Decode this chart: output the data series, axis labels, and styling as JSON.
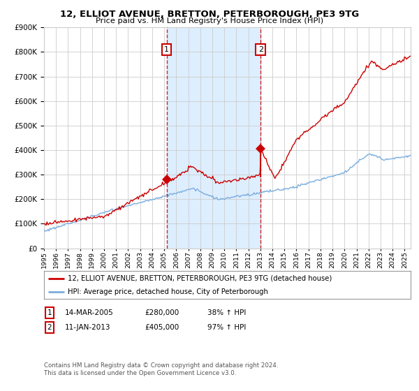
{
  "title": "12, ELLIOT AVENUE, BRETTON, PETERBOROUGH, PE3 9TG",
  "subtitle": "Price paid vs. HM Land Registry's House Price Index (HPI)",
  "legend_line1": "12, ELLIOT AVENUE, BRETTON, PETERBOROUGH, PE3 9TG (detached house)",
  "legend_line2": "HPI: Average price, detached house, City of Peterborough",
  "annotation1_label": "1",
  "annotation1_date": "14-MAR-2005",
  "annotation1_price": "£280,000",
  "annotation1_hpi": "38% ↑ HPI",
  "annotation2_label": "2",
  "annotation2_date": "11-JAN-2013",
  "annotation2_price": "£405,000",
  "annotation2_hpi": "97% ↑ HPI",
  "footnote_line1": "Contains HM Land Registry data © Crown copyright and database right 2024.",
  "footnote_line2": "This data is licensed under the Open Government Licence v3.0.",
  "red_color": "#cc0000",
  "blue_color": "#7aadde",
  "shading_color": "#ddeeff",
  "grid_color": "#cccccc",
  "background_color": "#ffffff",
  "anno_box_color": "#cc0000",
  "ylim": [
    0,
    900000
  ],
  "year_start": 1995,
  "year_end": 2025,
  "purchase1_year": 2005.2,
  "purchase1_value": 280000,
  "purchase2_year": 2013.03,
  "purchase2_value": 405000
}
